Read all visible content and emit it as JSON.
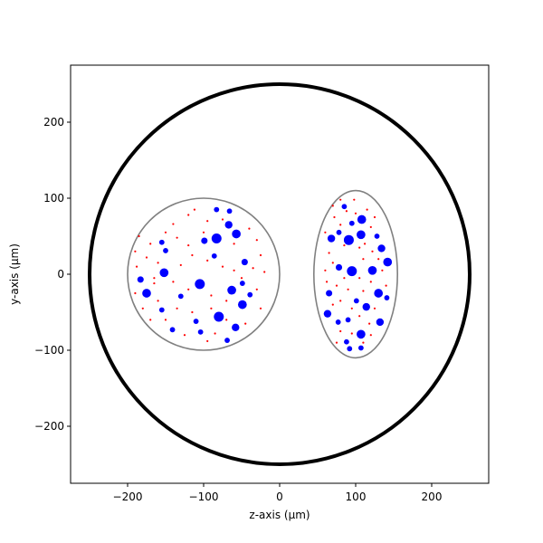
{
  "chart_data": {
    "type": "scatter",
    "title": "",
    "xlabel": "z-axis (µm)",
    "ylabel": "y-axis (µm)",
    "xlim": [
      -275,
      275
    ],
    "ylim": [
      -275,
      275
    ],
    "grid": false,
    "x_ticks": [
      -200,
      -100,
      0,
      100,
      200
    ],
    "y_ticks": [
      -200,
      -100,
      0,
      100,
      200
    ],
    "x_tick_labels": [
      "−200",
      "−100",
      "0",
      "100",
      "200"
    ],
    "y_tick_labels": [
      "−200",
      "−100",
      "0",
      "100",
      "200"
    ],
    "colors": {
      "outer": "#000000",
      "region": "#808080",
      "large": "#0000ff",
      "small": "#ff0000"
    },
    "outer_circle": {
      "cx": 0,
      "cy": 0,
      "r": 250
    },
    "regions": [
      {
        "shape": "circle",
        "cx": -100,
        "cy": 0,
        "rx": 100,
        "ry": 100
      },
      {
        "shape": "ellipse",
        "cx": 100,
        "cy": 0,
        "rx": 55,
        "ry": 110
      }
    ],
    "large_particles": [
      {
        "x": -83,
        "y": 85,
        "size": 1
      },
      {
        "x": -66,
        "y": 83,
        "size": 1
      },
      {
        "x": -67,
        "y": 65,
        "size": 2
      },
      {
        "x": -83,
        "y": 47,
        "size": 3
      },
      {
        "x": -57,
        "y": 53,
        "size": 2.5
      },
      {
        "x": -99,
        "y": 44,
        "size": 1.5
      },
      {
        "x": -155,
        "y": 42,
        "size": 1
      },
      {
        "x": -150,
        "y": 31,
        "size": 1
      },
      {
        "x": -86,
        "y": 24,
        "size": 1
      },
      {
        "x": -46,
        "y": 16,
        "size": 1.5
      },
      {
        "x": -152,
        "y": 2,
        "size": 2.5
      },
      {
        "x": -183,
        "y": -7,
        "size": 1.5
      },
      {
        "x": -105,
        "y": -13,
        "size": 3
      },
      {
        "x": -49,
        "y": -12,
        "size": 1
      },
      {
        "x": -63,
        "y": -21,
        "size": 2.5
      },
      {
        "x": -39,
        "y": -27,
        "size": 1
      },
      {
        "x": -130,
        "y": -29,
        "size": 1
      },
      {
        "x": -175,
        "y": -25,
        "size": 2.5
      },
      {
        "x": -49,
        "y": -40,
        "size": 2.5
      },
      {
        "x": -155,
        "y": -47,
        "size": 1
      },
      {
        "x": -80,
        "y": -56,
        "size": 3
      },
      {
        "x": -110,
        "y": -62,
        "size": 1
      },
      {
        "x": -58,
        "y": -70,
        "size": 2
      },
      {
        "x": -141,
        "y": -73,
        "size": 1
      },
      {
        "x": -104,
        "y": -76,
        "size": 1
      },
      {
        "x": -69,
        "y": -87,
        "size": 1
      },
      {
        "x": 85,
        "y": 89,
        "size": 1
      },
      {
        "x": 108,
        "y": 72,
        "size": 2.5
      },
      {
        "x": 95,
        "y": 67,
        "size": 1
      },
      {
        "x": 78,
        "y": 55,
        "size": 1
      },
      {
        "x": 68,
        "y": 47,
        "size": 2
      },
      {
        "x": 107,
        "y": 52,
        "size": 2.5
      },
      {
        "x": 91,
        "y": 45,
        "size": 3
      },
      {
        "x": 128,
        "y": 50,
        "size": 1
      },
      {
        "x": 134,
        "y": 34,
        "size": 2
      },
      {
        "x": 142,
        "y": 16,
        "size": 2.5
      },
      {
        "x": 78,
        "y": 9,
        "size": 1.5
      },
      {
        "x": 95,
        "y": 4,
        "size": 3
      },
      {
        "x": 122,
        "y": 5,
        "size": 2.5
      },
      {
        "x": 65,
        "y": -25,
        "size": 1.5
      },
      {
        "x": 130,
        "y": -25,
        "size": 2.5
      },
      {
        "x": 141,
        "y": -31,
        "size": 1
      },
      {
        "x": 101,
        "y": -35,
        "size": 1
      },
      {
        "x": 114,
        "y": -43,
        "size": 2
      },
      {
        "x": 63,
        "y": -52,
        "size": 2
      },
      {
        "x": 90,
        "y": -60,
        "size": 1
      },
      {
        "x": 77,
        "y": -63,
        "size": 1
      },
      {
        "x": 132,
        "y": -63,
        "size": 2
      },
      {
        "x": 107,
        "y": -79,
        "size": 2.5
      },
      {
        "x": 88,
        "y": -89,
        "size": 1
      },
      {
        "x": 92,
        "y": -98,
        "size": 1
      },
      {
        "x": 107,
        "y": -97,
        "size": 1
      }
    ],
    "small_particles": [
      {
        "x": -120,
        "y": 78
      },
      {
        "x": -95,
        "y": 70
      },
      {
        "x": -140,
        "y": 66
      },
      {
        "x": -75,
        "y": 72
      },
      {
        "x": -185,
        "y": 50
      },
      {
        "x": -170,
        "y": 40
      },
      {
        "x": -135,
        "y": 48
      },
      {
        "x": -120,
        "y": 38
      },
      {
        "x": -60,
        "y": 40
      },
      {
        "x": -30,
        "y": 45
      },
      {
        "x": -25,
        "y": 25
      },
      {
        "x": -190,
        "y": 30
      },
      {
        "x": -175,
        "y": 22
      },
      {
        "x": -160,
        "y": 15
      },
      {
        "x": -130,
        "y": 12
      },
      {
        "x": -115,
        "y": 25
      },
      {
        "x": -95,
        "y": 18
      },
      {
        "x": -75,
        "y": 10
      },
      {
        "x": -35,
        "y": 8
      },
      {
        "x": -20,
        "y": 3
      },
      {
        "x": -188,
        "y": 10
      },
      {
        "x": -165,
        "y": -12
      },
      {
        "x": -140,
        "y": -10
      },
      {
        "x": -120,
        "y": -20
      },
      {
        "x": -90,
        "y": -28
      },
      {
        "x": -70,
        "y": -35
      },
      {
        "x": -30,
        "y": -20
      },
      {
        "x": -25,
        "y": -45
      },
      {
        "x": -190,
        "y": -25
      },
      {
        "x": -160,
        "y": -35
      },
      {
        "x": -135,
        "y": -45
      },
      {
        "x": -115,
        "y": -50
      },
      {
        "x": -90,
        "y": -45
      },
      {
        "x": -70,
        "y": -60
      },
      {
        "x": -45,
        "y": -65
      },
      {
        "x": -170,
        "y": -60
      },
      {
        "x": -150,
        "y": -60
      },
      {
        "x": -125,
        "y": -80
      },
      {
        "x": -95,
        "y": -88
      },
      {
        "x": -85,
        "y": -78
      },
      {
        "x": -165,
        "y": -5
      },
      {
        "x": -60,
        "y": 5
      },
      {
        "x": -50,
        "y": -5
      },
      {
        "x": -100,
        "y": 55
      },
      {
        "x": -150,
        "y": 55
      },
      {
        "x": -180,
        "y": -45
      },
      {
        "x": -112,
        "y": 85
      },
      {
        "x": -40,
        "y": 60
      },
      {
        "x": 80,
        "y": 98
      },
      {
        "x": 98,
        "y": 98
      },
      {
        "x": 88,
        "y": 83
      },
      {
        "x": 115,
        "y": 85
      },
      {
        "x": 72,
        "y": 75
      },
      {
        "x": 100,
        "y": 80
      },
      {
        "x": 125,
        "y": 75
      },
      {
        "x": 80,
        "y": 65
      },
      {
        "x": 120,
        "y": 62
      },
      {
        "x": 60,
        "y": 55
      },
      {
        "x": 85,
        "y": 38
      },
      {
        "x": 105,
        "y": 35
      },
      {
        "x": 122,
        "y": 30
      },
      {
        "x": 65,
        "y": 28
      },
      {
        "x": 70,
        "y": 15
      },
      {
        "x": 110,
        "y": 20
      },
      {
        "x": 135,
        "y": 5
      },
      {
        "x": 60,
        "y": 5
      },
      {
        "x": 85,
        "y": -5
      },
      {
        "x": 105,
        "y": -5
      },
      {
        "x": 120,
        "y": -10
      },
      {
        "x": 75,
        "y": -15
      },
      {
        "x": 90,
        "y": -20
      },
      {
        "x": 110,
        "y": -22
      },
      {
        "x": 80,
        "y": -35
      },
      {
        "x": 95,
        "y": -45
      },
      {
        "x": 125,
        "y": -45
      },
      {
        "x": 70,
        "y": -40
      },
      {
        "x": 105,
        "y": -55
      },
      {
        "x": 118,
        "y": -65
      },
      {
        "x": 80,
        "y": -75
      },
      {
        "x": 95,
        "y": -78
      },
      {
        "x": 120,
        "y": -80
      },
      {
        "x": 75,
        "y": -90
      },
      {
        "x": 110,
        "y": -90
      },
      {
        "x": 130,
        "y": 20
      },
      {
        "x": 62,
        "y": -10
      },
      {
        "x": 140,
        "y": -15
      },
      {
        "x": 70,
        "y": 90
      },
      {
        "x": 112,
        "y": 40
      }
    ]
  }
}
